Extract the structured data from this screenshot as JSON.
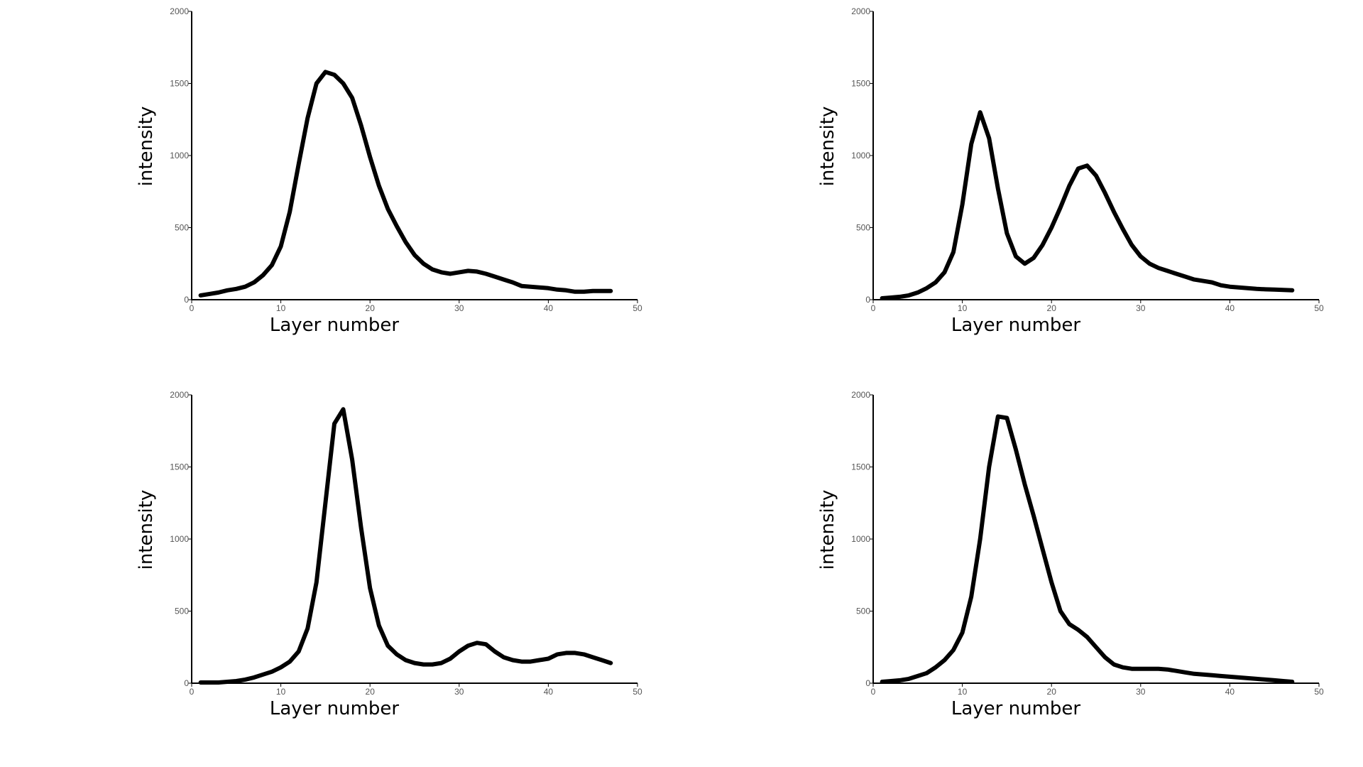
{
  "chart_data": [
    {
      "type": "line",
      "xlabel": "Layer number",
      "ylabel": "intensity",
      "xlim": [
        0,
        50
      ],
      "ylim": [
        0,
        2000
      ],
      "xticks": [
        "0",
        "10",
        "20",
        "30",
        "40",
        "50"
      ],
      "yticks": [
        "0",
        "500",
        "1000",
        "1500",
        "2000"
      ],
      "grid": false,
      "series": [
        {
          "x": [
            1,
            2,
            3,
            4,
            5,
            6,
            7,
            8,
            9,
            10,
            11,
            12,
            13,
            14,
            15,
            16,
            17,
            18,
            19,
            20,
            21,
            22,
            23,
            24,
            25,
            26,
            27,
            28,
            29,
            30,
            31,
            32,
            33,
            34,
            35,
            36,
            37,
            38,
            39,
            40,
            41,
            42,
            43,
            44,
            45,
            46,
            47
          ],
          "values": [
            30,
            40,
            50,
            65,
            75,
            90,
            120,
            170,
            240,
            370,
            610,
            940,
            1260,
            1500,
            1580,
            1560,
            1500,
            1400,
            1210,
            990,
            790,
            630,
            510,
            400,
            310,
            250,
            210,
            190,
            180,
            190,
            200,
            195,
            180,
            160,
            140,
            120,
            95,
            90,
            85,
            80,
            70,
            65,
            55,
            55,
            60,
            60,
            60
          ]
        }
      ]
    },
    {
      "type": "line",
      "xlabel": "Layer number",
      "ylabel": "intensity",
      "xlim": [
        0,
        50
      ],
      "ylim": [
        0,
        2000
      ],
      "xticks": [
        "0",
        "10",
        "20",
        "30",
        "40",
        "50"
      ],
      "yticks": [
        "0",
        "500",
        "1000",
        "1500",
        "2000"
      ],
      "grid": false,
      "series": [
        {
          "x": [
            1,
            2,
            3,
            4,
            5,
            6,
            7,
            8,
            9,
            10,
            11,
            12,
            13,
            14,
            15,
            16,
            17,
            18,
            19,
            20,
            21,
            22,
            23,
            24,
            25,
            26,
            27,
            28,
            29,
            30,
            31,
            32,
            33,
            34,
            35,
            36,
            37,
            38,
            39,
            40,
            41,
            42,
            43,
            44,
            45,
            46,
            47
          ],
          "values": [
            10,
            15,
            20,
            30,
            50,
            80,
            120,
            190,
            330,
            660,
            1080,
            1300,
            1120,
            770,
            460,
            300,
            250,
            290,
            380,
            500,
            640,
            790,
            910,
            930,
            860,
            740,
            610,
            490,
            380,
            300,
            250,
            220,
            200,
            180,
            160,
            140,
            130,
            120,
            100,
            90,
            85,
            80,
            75,
            72,
            70,
            68,
            65
          ]
        }
      ]
    },
    {
      "type": "line",
      "xlabel": "Layer number",
      "ylabel": "intensity",
      "xlim": [
        0,
        50
      ],
      "ylim": [
        0,
        2000
      ],
      "xticks": [
        "0",
        "10",
        "20",
        "30",
        "40",
        "50"
      ],
      "yticks": [
        "0",
        "500",
        "1000",
        "1500",
        "2000"
      ],
      "grid": false,
      "series": [
        {
          "x": [
            1,
            2,
            3,
            4,
            5,
            6,
            7,
            8,
            9,
            10,
            11,
            12,
            13,
            14,
            15,
            16,
            17,
            18,
            19,
            20,
            21,
            22,
            23,
            24,
            25,
            26,
            27,
            28,
            29,
            30,
            31,
            32,
            33,
            34,
            35,
            36,
            37,
            38,
            39,
            40,
            41,
            42,
            43,
            44,
            45,
            46,
            47
          ],
          "values": [
            5,
            5,
            5,
            10,
            15,
            25,
            40,
            60,
            80,
            110,
            150,
            220,
            380,
            700,
            1250,
            1800,
            1900,
            1550,
            1080,
            660,
            400,
            260,
            200,
            160,
            140,
            130,
            130,
            140,
            170,
            220,
            260,
            280,
            270,
            220,
            180,
            160,
            150,
            150,
            160,
            170,
            200,
            210,
            210,
            200,
            180,
            160,
            140
          ]
        }
      ]
    },
    {
      "type": "line",
      "xlabel": "Layer number",
      "ylabel": "intensity",
      "xlim": [
        0,
        50
      ],
      "ylim": [
        0,
        2000
      ],
      "xticks": [
        "0",
        "10",
        "20",
        "30",
        "40",
        "50"
      ],
      "yticks": [
        "0",
        "500",
        "1000",
        "1500",
        "2000"
      ],
      "grid": false,
      "series": [
        {
          "x": [
            1,
            2,
            3,
            4,
            5,
            6,
            7,
            8,
            9,
            10,
            11,
            12,
            13,
            14,
            15,
            16,
            17,
            18,
            19,
            20,
            21,
            22,
            23,
            24,
            25,
            26,
            27,
            28,
            29,
            30,
            31,
            32,
            33,
            34,
            35,
            36,
            37,
            38,
            39,
            40,
            41,
            42,
            43,
            44,
            45,
            46,
            47
          ],
          "values": [
            10,
            15,
            20,
            30,
            50,
            70,
            110,
            160,
            230,
            350,
            600,
            1000,
            1500,
            1850,
            1840,
            1620,
            1380,
            1160,
            930,
            700,
            500,
            410,
            370,
            320,
            250,
            180,
            130,
            110,
            100,
            100,
            100,
            100,
            95,
            85,
            75,
            65,
            60,
            55,
            50,
            45,
            40,
            35,
            30,
            25,
            20,
            15,
            10
          ]
        }
      ]
    }
  ]
}
